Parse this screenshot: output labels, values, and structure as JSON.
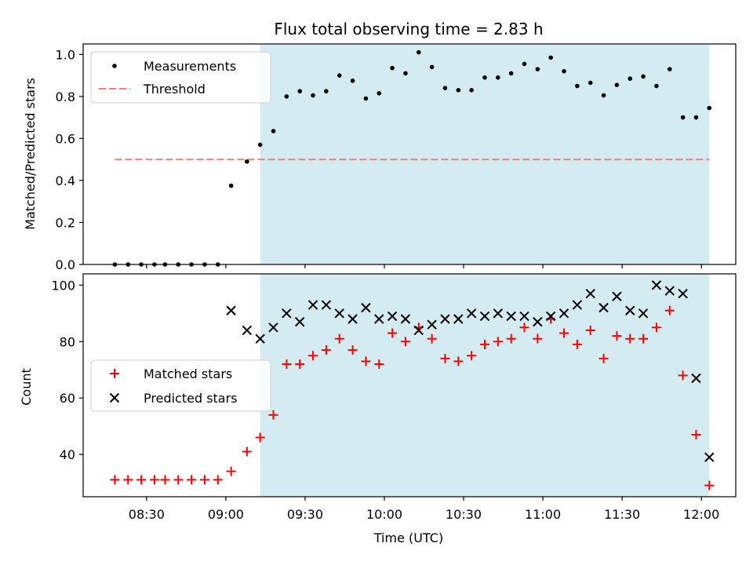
{
  "chart_data": [
    {
      "type": "scatter",
      "title": "Flux total observing time = 2.83 h",
      "xlabel": "",
      "ylabel": "Matched/Predicted stars",
      "ylim": [
        0,
        1.05
      ],
      "yticks": [
        "0.0",
        "0.2",
        "0.4",
        "0.6",
        "0.8",
        "1.0"
      ],
      "xlim": [
        "08:06",
        "12:13"
      ],
      "shaded_region": {
        "start": "09:13",
        "end": "12:03",
        "color": "#d4ebf1"
      },
      "legend": {
        "placement": "top-left",
        "entries": [
          "Measurements",
          "Threshold"
        ]
      },
      "threshold": {
        "name": "Threshold",
        "value": 0.5,
        "x_start": "08:18",
        "x_end": "12:03",
        "color": "#f08080"
      },
      "series": [
        {
          "name": "Measurements",
          "color": "#000000",
          "x": [
            "08:18",
            "08:23",
            "08:28",
            "08:33",
            "08:37",
            "08:42",
            "08:47",
            "08:52",
            "08:57",
            "09:02",
            "09:08",
            "09:13",
            "09:18",
            "09:23",
            "09:28",
            "09:33",
            "09:38",
            "09:43",
            "09:48",
            "09:53",
            "09:58",
            "10:03",
            "10:08",
            "10:13",
            "10:18",
            "10:23",
            "10:28",
            "10:33",
            "10:38",
            "10:43",
            "10:48",
            "10:53",
            "10:58",
            "11:03",
            "11:08",
            "11:13",
            "11:18",
            "11:23",
            "11:28",
            "11:33",
            "11:38",
            "11:43",
            "11:48",
            "11:53",
            "11:58",
            "12:03"
          ],
          "y": [
            0,
            0,
            0,
            0,
            0,
            0,
            0,
            0,
            0,
            0.375,
            0.49,
            0.57,
            0.635,
            0.8,
            0.825,
            0.805,
            0.825,
            0.9,
            0.875,
            0.79,
            0.815,
            0.935,
            0.91,
            1.01,
            0.94,
            0.84,
            0.83,
            0.83,
            0.89,
            0.89,
            0.91,
            0.955,
            0.93,
            0.985,
            0.92,
            0.85,
            0.865,
            0.805,
            0.855,
            0.885,
            0.895,
            0.85,
            0.93,
            0.7,
            0.7,
            0.745
          ]
        }
      ]
    },
    {
      "type": "scatter",
      "title": "",
      "xlabel": "Time (UTC)",
      "ylabel": "Count",
      "ylim": [
        25,
        104
      ],
      "yticks": [
        "40",
        "60",
        "80",
        "100"
      ],
      "xticks": [
        "08:30",
        "09:00",
        "09:30",
        "10:00",
        "10:30",
        "11:00",
        "11:30",
        "12:00"
      ],
      "xlim": [
        "08:06",
        "12:13"
      ],
      "shaded_region": {
        "start": "09:13",
        "end": "12:03",
        "color": "#d4ebf1"
      },
      "legend": {
        "placement": "center-left",
        "entries": [
          "Matched stars",
          "Predicted stars"
        ]
      },
      "series": [
        {
          "name": "Matched stars",
          "marker": "plus",
          "color": "#ff0000",
          "x": [
            "08:18",
            "08:23",
            "08:28",
            "08:33",
            "08:37",
            "08:42",
            "08:47",
            "08:52",
            "08:57",
            "09:02",
            "09:08",
            "09:13",
            "09:18",
            "09:23",
            "09:28",
            "09:33",
            "09:38",
            "09:43",
            "09:48",
            "09:53",
            "09:58",
            "10:03",
            "10:08",
            "10:13",
            "10:18",
            "10:23",
            "10:28",
            "10:33",
            "10:38",
            "10:43",
            "10:48",
            "10:53",
            "10:58",
            "11:03",
            "11:08",
            "11:13",
            "11:18",
            "11:23",
            "11:28",
            "11:33",
            "11:38",
            "11:43",
            "11:48",
            "11:53",
            "11:58",
            "12:03"
          ],
          "y": [
            31,
            31,
            31,
            31,
            31,
            31,
            31,
            31,
            31,
            34,
            41,
            46,
            54,
            72,
            72,
            75,
            77,
            81,
            77,
            73,
            72,
            83,
            80,
            85,
            81,
            74,
            73,
            75,
            79,
            80,
            81,
            85,
            81,
            88,
            83,
            79,
            84,
            74,
            82,
            81,
            81,
            85,
            91,
            68,
            47,
            29
          ]
        },
        {
          "name": "Predicted stars",
          "marker": "x",
          "color": "#000000",
          "x": [
            "09:02",
            "09:08",
            "09:13",
            "09:18",
            "09:23",
            "09:28",
            "09:33",
            "09:38",
            "09:43",
            "09:48",
            "09:53",
            "09:58",
            "10:03",
            "10:08",
            "10:13",
            "10:18",
            "10:23",
            "10:28",
            "10:33",
            "10:38",
            "10:43",
            "10:48",
            "10:53",
            "10:58",
            "11:03",
            "11:08",
            "11:13",
            "11:18",
            "11:23",
            "11:28",
            "11:33",
            "11:38",
            "11:43",
            "11:48",
            "11:53",
            "11:58",
            "12:03"
          ],
          "y": [
            91,
            84,
            81,
            85,
            90,
            87,
            93,
            93,
            90,
            88,
            92,
            88,
            89,
            88,
            84,
            86,
            88,
            88,
            90,
            89,
            90,
            89,
            89,
            87,
            89,
            90,
            93,
            97,
            92,
            96,
            91,
            90,
            100,
            98,
            97,
            67,
            39
          ]
        }
      ]
    }
  ]
}
